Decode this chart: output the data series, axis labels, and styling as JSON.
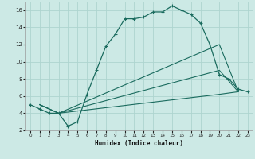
{
  "xlabel": "Humidex (Indice chaleur)",
  "bg_color": "#cce9e5",
  "line_color": "#1a6b5e",
  "grid_color": "#aed4cf",
  "xlim": [
    -0.5,
    23.5
  ],
  "ylim": [
    2,
    17
  ],
  "xticks": [
    0,
    1,
    2,
    3,
    4,
    5,
    6,
    7,
    8,
    9,
    10,
    11,
    12,
    13,
    14,
    15,
    16,
    17,
    18,
    19,
    20,
    21,
    22,
    23
  ],
  "yticks": [
    2,
    4,
    6,
    8,
    10,
    12,
    14,
    16
  ],
  "line1_x": [
    0,
    1,
    2,
    3,
    4,
    5,
    6,
    7,
    8,
    9,
    10,
    11,
    12,
    13,
    14,
    15,
    16,
    17,
    18,
    19,
    20,
    21,
    22,
    23
  ],
  "line1_y": [
    5.0,
    4.5,
    4.0,
    4.0,
    2.5,
    3.0,
    6.2,
    9.0,
    11.8,
    13.2,
    15.0,
    15.0,
    15.2,
    15.8,
    15.8,
    16.5,
    16.0,
    15.5,
    14.5,
    12.0,
    8.5,
    8.0,
    6.8,
    6.5
  ],
  "line2_x": [
    1,
    3,
    20,
    22
  ],
  "line2_y": [
    5.0,
    4.0,
    12.0,
    6.5
  ],
  "line3_x": [
    1,
    3,
    20,
    22
  ],
  "line3_y": [
    5.0,
    4.0,
    9.0,
    6.5
  ],
  "line4_x": [
    1,
    3,
    20,
    22
  ],
  "line4_y": [
    5.0,
    4.0,
    6.2,
    6.5
  ]
}
